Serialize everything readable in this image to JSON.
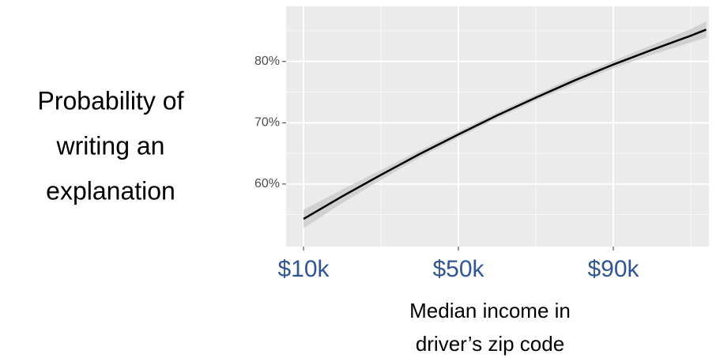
{
  "chart_data": {
    "type": "line",
    "ylabel": [
      "Probability of",
      "writing an",
      "explanation"
    ],
    "xlabel": [
      "Median income in",
      "driver’s zip code"
    ],
    "x": [
      10,
      20,
      30,
      40,
      50,
      60,
      70,
      80,
      90,
      100,
      110,
      114
    ],
    "values": [
      54.3,
      58.0,
      61.5,
      64.9,
      68.1,
      71.2,
      74.1,
      76.9,
      79.5,
      81.9,
      84.2,
      85.2
    ],
    "lower": [
      52.8,
      56.9,
      60.7,
      64.3,
      67.6,
      70.7,
      73.6,
      76.3,
      78.9,
      81.1,
      83.1,
      83.9
    ],
    "upper": [
      55.8,
      59.1,
      62.3,
      65.5,
      68.6,
      71.7,
      74.6,
      77.5,
      80.1,
      82.7,
      85.3,
      86.5
    ],
    "color": "#000000",
    "band_color": "#cccccc",
    "xlim": [
      5.5,
      114.7
    ],
    "xticks": [
      {
        "value": 10,
        "label": "$10k"
      },
      {
        "value": 50,
        "label": "$50k"
      },
      {
        "value": 90,
        "label": "$90k"
      }
    ],
    "xminor": [
      30,
      70,
      110
    ],
    "ylim": [
      49.8,
      89
    ],
    "yticks": [
      {
        "value": 60,
        "label": "60%"
      },
      {
        "value": 70,
        "label": "70%"
      },
      {
        "value": 80,
        "label": "80%"
      }
    ],
    "yminor": [
      55,
      65,
      75,
      85
    ],
    "grid": true
  }
}
